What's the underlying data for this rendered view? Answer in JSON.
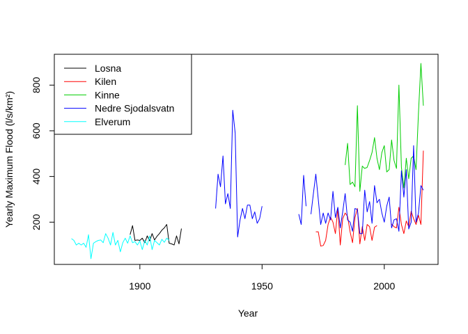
{
  "chart_data": {
    "type": "line",
    "title": "",
    "xlabel": "Year",
    "ylabel": "Yearly Maximum Flood (l/s/km²)",
    "xlim": [
      1865,
      2022
    ],
    "ylim": [
      15,
      935
    ],
    "xticks": [
      1900,
      1950,
      2000
    ],
    "yticks": [
      200,
      400,
      600,
      800
    ],
    "grid": false,
    "legend_position": "top-left",
    "series": [
      {
        "name": "Losna",
        "color": "#000000",
        "segments": [
          [
            [
              1896,
              145
            ],
            [
              1897,
              185
            ],
            [
              1898,
              120
            ],
            [
              1899,
              122
            ],
            [
              1900,
              120
            ],
            [
              1901,
              130
            ],
            [
              1902,
              110
            ],
            [
              1903,
              140
            ],
            [
              1904,
              118
            ],
            [
              1905,
              150
            ],
            [
              1906,
              122
            ],
            [
              1907,
              138
            ],
            [
              1908,
              150
            ],
            [
              1909,
              165
            ],
            [
              1910,
              175
            ],
            [
              1911,
              190
            ],
            [
              1912,
              108
            ],
            [
              1913,
              105
            ],
            [
              1914,
              100
            ],
            [
              1915,
              140
            ],
            [
              1916,
              105
            ],
            [
              1917,
              172
            ]
          ]
        ]
      },
      {
        "name": "Kilen",
        "color": "#ff0000",
        "segments": [
          [
            [
              1972,
              158
            ],
            [
              1973,
              158
            ],
            [
              1974,
              95
            ],
            [
              1975,
              98
            ],
            [
              1976,
              120
            ],
            [
              1977,
              190
            ],
            [
              1978,
              222
            ],
            [
              1979,
              200
            ],
            [
              1980,
              150
            ],
            [
              1981,
              262
            ],
            [
              1982,
              100
            ],
            [
              1983,
              215
            ],
            [
              1984,
              240
            ],
            [
              1985,
              225
            ],
            [
              1986,
              158
            ],
            [
              1987,
              110
            ],
            [
              1988,
              220
            ],
            [
              1989,
              260
            ],
            [
              1990,
              105
            ],
            [
              1991,
              180
            ],
            [
              1992,
              120
            ],
            [
              1993,
              190
            ],
            [
              1994,
              180
            ],
            [
              1995,
              120
            ],
            [
              1996,
              178
            ],
            [
              1997,
              185
            ]
          ],
          [
            [
              2003,
              192
            ],
            [
              2004,
              180
            ],
            [
              2005,
              175
            ],
            [
              2006,
              265
            ],
            [
              2007,
              190
            ],
            [
              2008,
              150
            ],
            [
              2009,
              205
            ],
            [
              2010,
              180
            ],
            [
              2011,
              248
            ],
            [
              2012,
              215
            ],
            [
              2013,
              190
            ],
            [
              2014,
              230
            ],
            [
              2015,
              190
            ],
            [
              2016,
              513
            ]
          ]
        ]
      },
      {
        "name": "Kinne",
        "color": "#00cd00",
        "segments": [
          [
            [
              1984,
              450
            ],
            [
              1985,
              545
            ],
            [
              1986,
              365
            ],
            [
              1987,
              375
            ],
            [
              1988,
              355
            ],
            [
              1989,
              710
            ],
            [
              1990,
              335
            ],
            [
              1991,
              445
            ],
            [
              1992,
              435
            ],
            [
              1993,
              440
            ],
            [
              1994,
              470
            ],
            [
              1995,
              505
            ],
            [
              1996,
              570
            ],
            [
              1997,
              480
            ],
            [
              1998,
              430
            ],
            [
              1999,
              505
            ],
            [
              2000,
              535
            ],
            [
              2001,
              420
            ],
            [
              2002,
              430
            ],
            [
              2003,
              560
            ],
            [
              2004,
              470
            ],
            [
              2005,
              435
            ],
            [
              2006,
              800
            ],
            [
              2007,
              440
            ],
            [
              2008,
              350
            ],
            [
              2009,
              480
            ],
            [
              2010,
              390
            ],
            [
              2011,
              480
            ],
            [
              2012,
              490
            ],
            [
              2013,
              430
            ],
            [
              2014,
              680
            ],
            [
              2015,
              895
            ],
            [
              2016,
              710
            ]
          ]
        ]
      },
      {
        "name": "Nedre Sjodalsvatn",
        "color": "#0000ff",
        "segments": [
          [
            [
              1931,
              260
            ],
            [
              1932,
              410
            ],
            [
              1933,
              355
            ],
            [
              1934,
              490
            ],
            [
              1935,
              280
            ],
            [
              1936,
              325
            ],
            [
              1937,
              260
            ],
            [
              1938,
              690
            ],
            [
              1939,
              590
            ],
            [
              1940,
              135
            ],
            [
              1941,
              210
            ],
            [
              1942,
              260
            ],
            [
              1943,
              215
            ],
            [
              1944,
              275
            ],
            [
              1945,
              275
            ],
            [
              1946,
              215
            ],
            [
              1947,
              245
            ],
            [
              1948,
              195
            ],
            [
              1949,
              215
            ],
            [
              1950,
              270
            ]
          ],
          [
            [
              1965,
              235
            ],
            [
              1966,
              190
            ],
            [
              1967,
              405
            ],
            [
              1968,
              270
            ]
          ],
          [
            [
              1970,
              235
            ],
            [
              1971,
              325
            ],
            [
              1972,
              410
            ],
            [
              1973,
              300
            ],
            [
              1974,
              190
            ],
            [
              1975,
              240
            ],
            [
              1976,
              195
            ],
            [
              1977,
              240
            ],
            [
              1978,
              210
            ],
            [
              1979,
              335
            ],
            [
              1980,
              220
            ],
            [
              1981,
              265
            ],
            [
              1982,
              175
            ],
            [
              1983,
              245
            ],
            [
              1984,
              325
            ],
            [
              1985,
              210
            ],
            [
              1986,
              200
            ],
            [
              1987,
              160
            ],
            [
              1988,
              260
            ],
            [
              1989,
              255
            ],
            [
              1990,
              150
            ],
            [
              1991,
              150
            ],
            [
              1992,
              340
            ],
            [
              1993,
              245
            ],
            [
              1994,
              290
            ],
            [
              1995,
              195
            ],
            [
              1996,
              360
            ],
            [
              1997,
              285
            ],
            [
              1998,
              300
            ],
            [
              1999,
              240
            ],
            [
              2000,
              200
            ],
            [
              2001,
              270
            ],
            [
              2002,
              310
            ],
            [
              2003,
              175
            ],
            [
              2004,
              210
            ],
            [
              2005,
              215
            ],
            [
              2006,
              160
            ],
            [
              2007,
              425
            ],
            [
              2008,
              310
            ],
            [
              2009,
              430
            ],
            [
              2010,
              170
            ],
            [
              2011,
              200
            ],
            [
              2012,
              535
            ],
            [
              2013,
              200
            ],
            [
              2014,
              240
            ],
            [
              2015,
              360
            ],
            [
              2016,
              340
            ]
          ]
        ]
      },
      {
        "name": "Elverum",
        "color": "#00ffff",
        "segments": [
          [
            [
              1872,
              128
            ],
            [
              1873,
              120
            ],
            [
              1874,
              100
            ],
            [
              1875,
              108
            ],
            [
              1876,
              100
            ],
            [
              1877,
              108
            ],
            [
              1878,
              90
            ],
            [
              1879,
              145
            ],
            [
              1880,
              40
            ],
            [
              1881,
              108
            ],
            [
              1882,
              115
            ],
            [
              1883,
              120
            ],
            [
              1884,
              122
            ],
            [
              1885,
              110
            ],
            [
              1886,
              150
            ],
            [
              1887,
              130
            ],
            [
              1888,
              100
            ],
            [
              1889,
              155
            ],
            [
              1890,
              100
            ],
            [
              1891,
              120
            ],
            [
              1892,
              70
            ],
            [
              1893,
              110
            ],
            [
              1894,
              130
            ],
            [
              1895,
              108
            ],
            [
              1896,
              140
            ],
            [
              1897,
              110
            ],
            [
              1898,
              115
            ],
            [
              1899,
              100
            ],
            [
              1900,
              118
            ],
            [
              1901,
              80
            ],
            [
              1902,
              120
            ],
            [
              1903,
              100
            ],
            [
              1904,
              140
            ],
            [
              1905,
              80
            ],
            [
              1906,
              120
            ],
            [
              1907,
              110
            ],
            [
              1908,
              100
            ],
            [
              1909,
              125
            ],
            [
              1910,
              112
            ],
            [
              1911,
              130
            ],
            [
              1912,
              120
            ]
          ]
        ]
      }
    ]
  }
}
